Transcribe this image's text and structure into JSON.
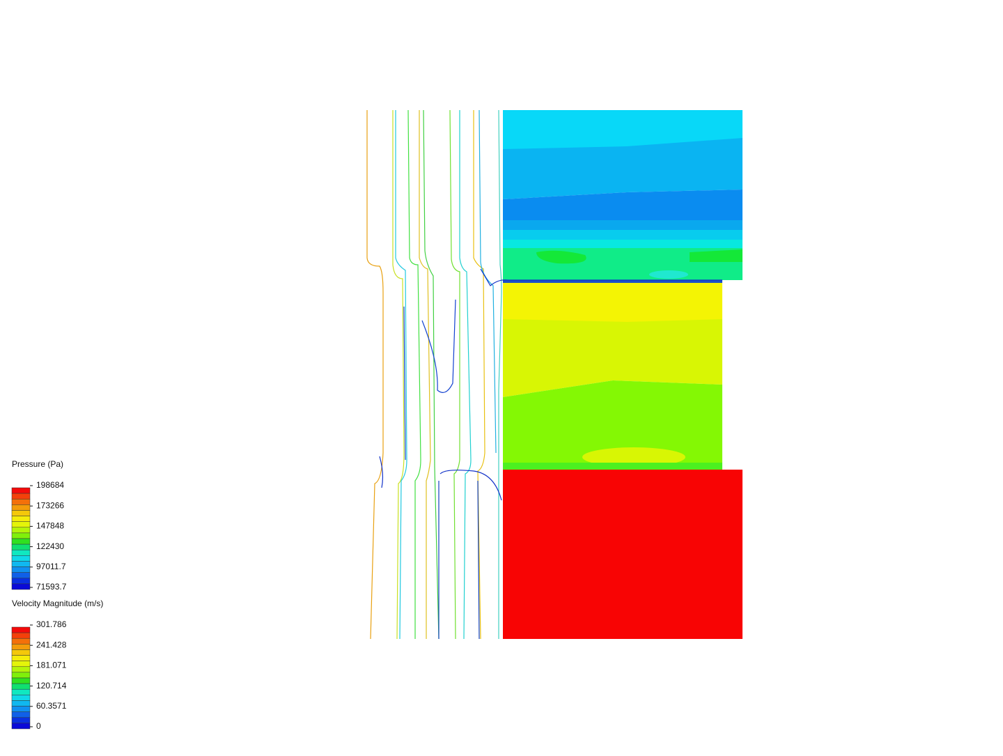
{
  "legends": [
    {
      "title": "Pressure (Pa)",
      "ticks": [
        "198684",
        "173266",
        "147848",
        "122430",
        "97011.7",
        "71593.7"
      ]
    },
    {
      "title": "Velocity Magnitude (m/s)",
      "ticks": [
        "301.786",
        "241.428",
        "181.071",
        "120.714",
        "60.3571",
        "0"
      ]
    }
  ]
}
